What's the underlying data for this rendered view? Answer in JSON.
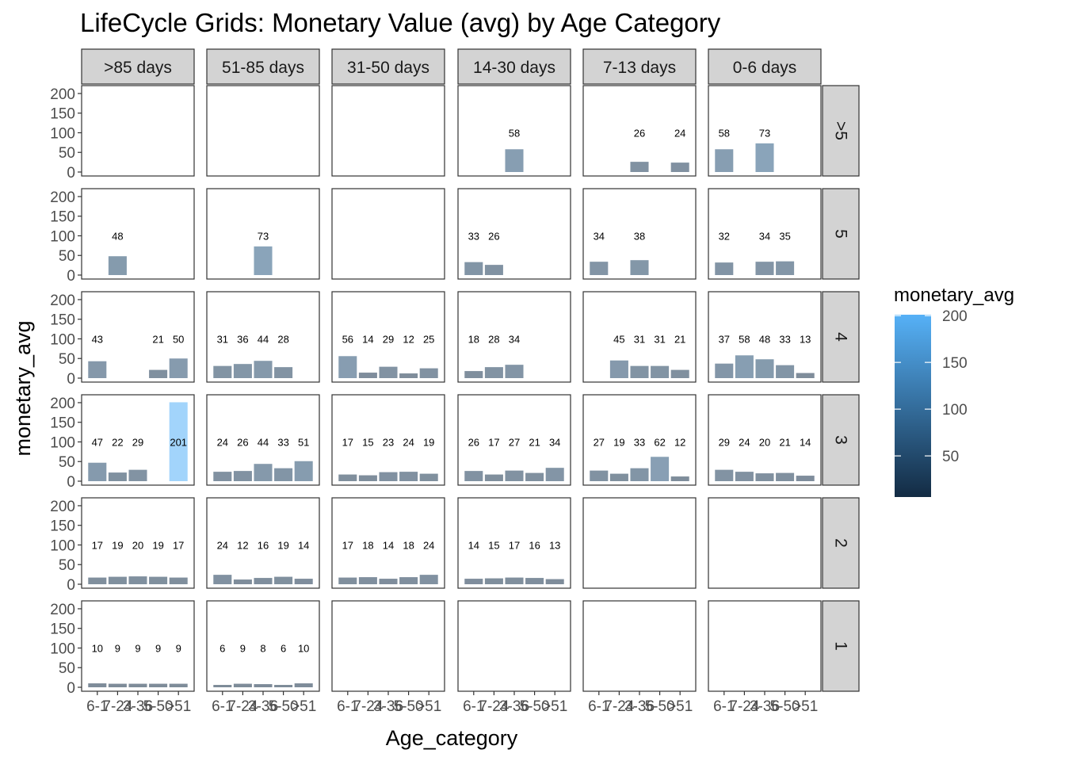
{
  "chart_data": {
    "type": "bar",
    "title": "LifeCycle Grids: Monetary Value (avg) by Age Category",
    "xlabel": "Age_category",
    "ylabel": "monetary_avg",
    "ylim": [
      0,
      210
    ],
    "y_ticks": [
      0,
      50,
      100,
      150,
      200
    ],
    "x_ticks": [
      "6-12",
      "13-24",
      "25-36",
      "37-50",
      "51"
    ],
    "x_tick_text": [
      "6-1",
      "7-24",
      "3-36",
      "5-50",
      ">51"
    ],
    "recency_columns": [
      ">85 days",
      "51-85 days",
      "31-50 days",
      "14-30 days",
      "7-13 days",
      "0-6 days"
    ],
    "frequency_rows": [
      ">5",
      "5",
      "4",
      "3",
      "2",
      "1"
    ],
    "grid": false,
    "legend": {
      "title": "monetary_avg",
      "ticks": [
        50,
        100,
        150,
        200
      ],
      "range": [
        6,
        201
      ],
      "color_low": "#132b43",
      "color_high": "#56b1f7",
      "position": "right"
    },
    "bar_alpha": 0.55,
    "label_y_value": 100,
    "panels": [
      {
        "row": ">5",
        "col": ">85 days",
        "values": [
          null,
          null,
          null,
          null,
          null
        ]
      },
      {
        "row": ">5",
        "col": "51-85 days",
        "values": [
          null,
          null,
          null,
          null,
          null
        ]
      },
      {
        "row": ">5",
        "col": "31-50 days",
        "values": [
          null,
          null,
          null,
          null,
          null
        ]
      },
      {
        "row": ">5",
        "col": "14-30 days",
        "values": [
          null,
          null,
          58,
          null,
          null
        ]
      },
      {
        "row": ">5",
        "col": "7-13 days",
        "values": [
          null,
          null,
          26,
          null,
          24
        ]
      },
      {
        "row": ">5",
        "col": "0-6 days",
        "values": [
          58,
          null,
          73,
          null,
          null
        ]
      },
      {
        "row": "5",
        "col": ">85 days",
        "values": [
          null,
          48,
          null,
          null,
          null
        ]
      },
      {
        "row": "5",
        "col": "51-85 days",
        "values": [
          null,
          null,
          73,
          null,
          null
        ]
      },
      {
        "row": "5",
        "col": "31-50 days",
        "values": [
          null,
          null,
          null,
          null,
          null
        ]
      },
      {
        "row": "5",
        "col": "14-30 days",
        "values": [
          33,
          26,
          null,
          null,
          null
        ]
      },
      {
        "row": "5",
        "col": "7-13 days",
        "values": [
          34,
          null,
          38,
          null,
          null
        ]
      },
      {
        "row": "5",
        "col": "0-6 days",
        "values": [
          32,
          null,
          34,
          35,
          null
        ]
      },
      {
        "row": "4",
        "col": ">85 days",
        "values": [
          43,
          null,
          null,
          21,
          50
        ]
      },
      {
        "row": "4",
        "col": "51-85 days",
        "values": [
          31,
          36,
          44,
          28,
          null
        ]
      },
      {
        "row": "4",
        "col": "31-50 days",
        "values": [
          56,
          14,
          29,
          12,
          25
        ]
      },
      {
        "row": "4",
        "col": "14-30 days",
        "values": [
          18,
          28,
          34,
          null,
          null
        ]
      },
      {
        "row": "4",
        "col": "7-13 days",
        "values": [
          null,
          45,
          31,
          31,
          21
        ]
      },
      {
        "row": "4",
        "col": "0-6 days",
        "values": [
          37,
          58,
          48,
          33,
          13
        ]
      },
      {
        "row": "3",
        "col": ">85 days",
        "values": [
          47,
          22,
          29,
          null,
          201
        ]
      },
      {
        "row": "3",
        "col": "51-85 days",
        "values": [
          24,
          26,
          44,
          33,
          51
        ]
      },
      {
        "row": "3",
        "col": "31-50 days",
        "values": [
          17,
          15,
          23,
          24,
          19
        ]
      },
      {
        "row": "3",
        "col": "14-30 days",
        "values": [
          26,
          17,
          27,
          21,
          34
        ]
      },
      {
        "row": "3",
        "col": "7-13 days",
        "values": [
          27,
          19,
          33,
          62,
          12
        ]
      },
      {
        "row": "3",
        "col": "0-6 days",
        "values": [
          29,
          24,
          20,
          21,
          14
        ]
      },
      {
        "row": "2",
        "col": ">85 days",
        "values": [
          17,
          19,
          20,
          19,
          17
        ]
      },
      {
        "row": "2",
        "col": "51-85 days",
        "values": [
          24,
          12,
          16,
          19,
          14
        ]
      },
      {
        "row": "2",
        "col": "31-50 days",
        "values": [
          17,
          18,
          14,
          18,
          24
        ]
      },
      {
        "row": "2",
        "col": "14-30 days",
        "values": [
          14,
          15,
          17,
          16,
          13
        ]
      },
      {
        "row": "2",
        "col": "7-13 days",
        "values": [
          null,
          null,
          null,
          null,
          null
        ]
      },
      {
        "row": "2",
        "col": "0-6 days",
        "values": [
          null,
          null,
          null,
          null,
          null
        ]
      },
      {
        "row": "1",
        "col": ">85 days",
        "values": [
          10,
          9,
          9,
          9,
          9
        ]
      },
      {
        "row": "1",
        "col": "51-85 days",
        "values": [
          6,
          9,
          8,
          6,
          10
        ]
      },
      {
        "row": "1",
        "col": "31-50 days",
        "values": [
          null,
          null,
          null,
          null,
          null
        ]
      },
      {
        "row": "1",
        "col": "14-30 days",
        "values": [
          null,
          null,
          null,
          null,
          null
        ]
      },
      {
        "row": "1",
        "col": "7-13 days",
        "values": [
          null,
          null,
          null,
          null,
          null
        ]
      },
      {
        "row": "1",
        "col": "0-6 days",
        "values": [
          null,
          null,
          null,
          null,
          null
        ]
      }
    ]
  }
}
